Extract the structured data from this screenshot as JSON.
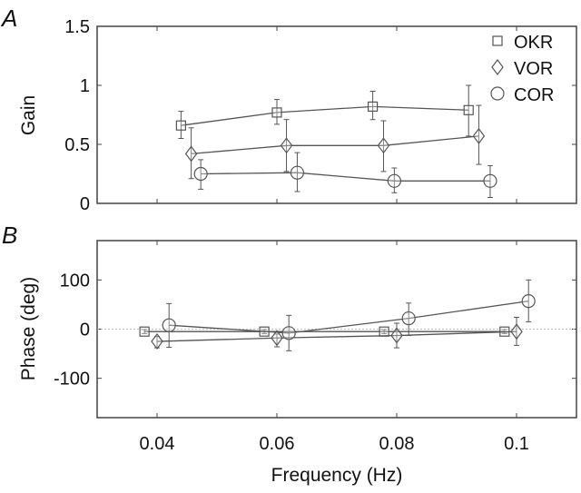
{
  "chart_data": [
    {
      "type": "line",
      "panel_label": "A",
      "ylabel": "Gain",
      "xlabel": "",
      "xlim": [
        0.03,
        0.11
      ],
      "ylim": [
        0,
        1.5
      ],
      "yticks": [
        "0",
        "0.5",
        "1",
        "1.5"
      ],
      "legend_placement": "top-right",
      "grid": false,
      "series": [
        {
          "name": "OKR",
          "marker": "square",
          "x": [
            0.044,
            0.06,
            0.076,
            0.092
          ],
          "y": [
            0.66,
            0.77,
            0.82,
            0.79
          ],
          "err_hi": [
            0.78,
            0.88,
            0.95,
            1.0
          ],
          "err_lo": [
            0.55,
            0.67,
            0.71,
            0.57
          ]
        },
        {
          "name": "VOR",
          "marker": "diamond",
          "x": [
            0.0457,
            0.0616,
            0.0778,
            0.0937
          ],
          "y": [
            0.42,
            0.49,
            0.49,
            0.57
          ],
          "err_hi": [
            0.64,
            0.71,
            0.7,
            0.83
          ],
          "err_lo": [
            0.21,
            0.27,
            0.27,
            0.33
          ]
        },
        {
          "name": "COR",
          "marker": "circle",
          "x": [
            0.0473,
            0.0634,
            0.0796,
            0.0956
          ],
          "y": [
            0.25,
            0.26,
            0.19,
            0.19
          ],
          "err_hi": [
            0.37,
            0.43,
            0.3,
            0.32
          ],
          "err_lo": [
            0.12,
            0.1,
            0.09,
            0.05
          ]
        }
      ]
    },
    {
      "type": "line",
      "panel_label": "B",
      "ylabel": "Phase (deg)",
      "xlabel": "Frequency (Hz)",
      "xlim": [
        0.03,
        0.11
      ],
      "ylim": [
        -180,
        180
      ],
      "xticks": [
        "0.04",
        "0.06",
        "0.08",
        "0.1"
      ],
      "yticks": [
        "-100",
        "0",
        "100"
      ],
      "zero_line": "dotted",
      "grid": false,
      "series": [
        {
          "marker": "square",
          "x": [
            0.0379,
            0.0579,
            0.0779,
            0.098
          ],
          "y": [
            -5,
            -5,
            -5,
            -5
          ],
          "err_hi": [
            -1,
            -1,
            -1,
            -1
          ],
          "err_lo": [
            -9,
            -9,
            -9,
            -9
          ]
        },
        {
          "marker": "diamond",
          "x": [
            0.04,
            0.06,
            0.08,
            0.1
          ],
          "y": [
            -25,
            -18,
            -13,
            -5
          ],
          "err_hi": [
            -15,
            -10,
            12,
            24
          ],
          "err_lo": [
            -38,
            -36,
            -38,
            -33
          ]
        },
        {
          "marker": "circle",
          "x": [
            0.042,
            0.062,
            0.082,
            0.102
          ],
          "y": [
            8,
            -8,
            22,
            57
          ],
          "err_hi": [
            52,
            28,
            53,
            100
          ],
          "err_lo": [
            -37,
            -44,
            -13,
            15
          ]
        }
      ]
    }
  ]
}
